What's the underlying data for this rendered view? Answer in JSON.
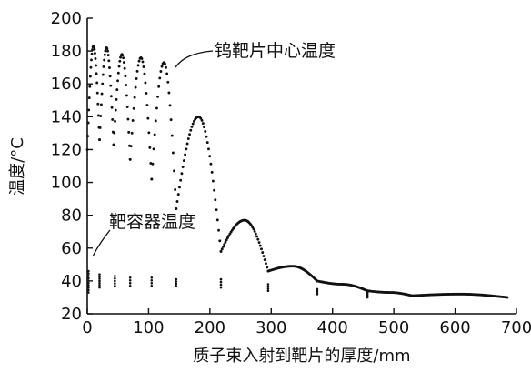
{
  "chart_data": {
    "type": "scatter",
    "title": "",
    "xlabel": "质子束入射到靶片的厚度/mm",
    "ylabel": "温度/°C",
    "xlim": [
      0,
      700
    ],
    "ylim": [
      20,
      200
    ],
    "xticks": [
      0,
      100,
      200,
      300,
      400,
      500,
      600,
      700
    ],
    "yticks": [
      20,
      40,
      60,
      80,
      100,
      120,
      140,
      160,
      180,
      200
    ],
    "grid": false,
    "legend": "none",
    "annotations": [
      {
        "text": "钨靶片中心温度",
        "series": "钨靶片中心温度"
      },
      {
        "text": "靶容器温度",
        "series": "靶容器温度"
      }
    ],
    "series": [
      {
        "name": "钨靶片中心温度",
        "segments": [
          {
            "x0": 0,
            "x1": 20,
            "y0": 120,
            "ypeak": 183,
            "y1": 126
          },
          {
            "x0": 20,
            "x1": 43,
            "y0": 126,
            "ypeak": 182,
            "y1": 123
          },
          {
            "x0": 43,
            "x1": 70,
            "y0": 123,
            "ypeak": 178,
            "y1": 114
          },
          {
            "x0": 70,
            "x1": 105,
            "y0": 114,
            "ypeak": 176,
            "y1": 102
          },
          {
            "x0": 105,
            "x1": 145,
            "y0": 102,
            "ypeak": 173,
            "y1": 84
          },
          {
            "x0": 145,
            "x1": 218,
            "y0": 84,
            "ypeak": 140,
            "y1": 58
          },
          {
            "x0": 218,
            "x1": 295,
            "y0": 58,
            "ypeak": 77,
            "y1": 46
          },
          {
            "x0": 295,
            "x1": 375,
            "y0": 46,
            "ypeak": 49,
            "y1": 40
          },
          {
            "x0": 375,
            "x1": 457,
            "y0": 40,
            "ypeak": 38,
            "y1": 34
          },
          {
            "x0": 457,
            "x1": 530,
            "y0": 34,
            "ypeak": 33,
            "y1": 31
          },
          {
            "x0": 530,
            "x1": 685,
            "y0": 31,
            "ypeak": 32,
            "y1": 30
          }
        ]
      },
      {
        "name": "靶容器温度",
        "clusters": [
          {
            "x": 2,
            "ymin": 33,
            "ymax": 46
          },
          {
            "x": 20,
            "ymin": 36,
            "ymax": 44
          },
          {
            "x": 45,
            "ymin": 37,
            "ymax": 43
          },
          {
            "x": 70,
            "ymin": 37,
            "ymax": 42
          },
          {
            "x": 105,
            "ymin": 37,
            "ymax": 42
          },
          {
            "x": 145,
            "ymin": 37,
            "ymax": 41
          },
          {
            "x": 218,
            "ymin": 36,
            "ymax": 41
          },
          {
            "x": 295,
            "ymin": 34,
            "ymax": 38
          },
          {
            "x": 375,
            "ymin": 32,
            "ymax": 35
          },
          {
            "x": 457,
            "ymin": 30,
            "ymax": 33
          }
        ]
      }
    ]
  }
}
